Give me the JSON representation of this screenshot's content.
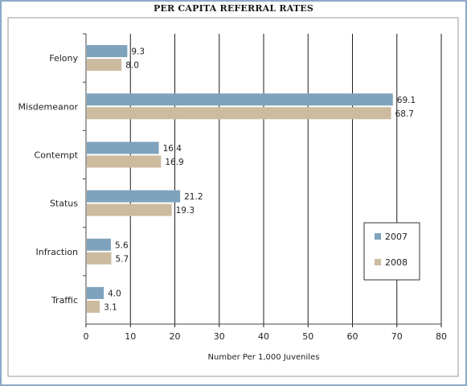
{
  "chart_data": {
    "type": "bar",
    "orientation": "horizontal",
    "title": "PER CAPITA REFERRAL RATES",
    "xlabel": "Number Per 1,000 Juveniles",
    "ylabel": "",
    "xlim": [
      0,
      80
    ],
    "x_ticks": [
      0,
      10,
      20,
      30,
      40,
      50,
      60,
      70,
      80
    ],
    "grid": "vertical",
    "legend_position": "right",
    "categories": [
      "Felony",
      "Misdemeanor",
      "Contempt",
      "Status",
      "Infraction",
      "Traffic"
    ],
    "series": [
      {
        "name": "2007",
        "color": "#7fa3bd",
        "values": [
          9.3,
          69.1,
          16.4,
          21.2,
          5.6,
          4.0
        ],
        "labels": [
          "9.3",
          "69.1",
          "16.4",
          "21.2",
          "5.6",
          "4.0"
        ]
      },
      {
        "name": "2008",
        "color": "#cdbba0",
        "values": [
          8.0,
          68.7,
          16.9,
          19.3,
          5.7,
          3.1
        ],
        "labels": [
          "8.0",
          "68.7",
          "16.9",
          "19.3",
          "5.7",
          "3.1"
        ]
      }
    ]
  }
}
